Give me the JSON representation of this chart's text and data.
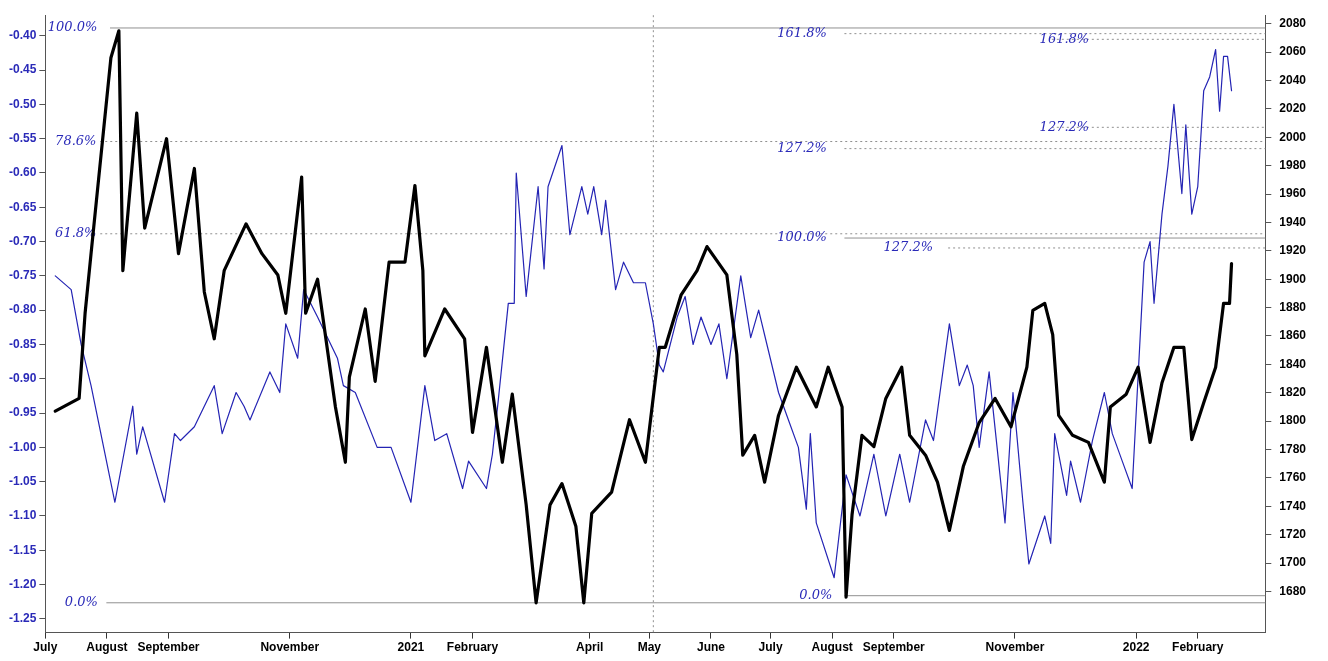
{
  "chart_data": {
    "type": "line",
    "xlim": [
      "2020-07-01",
      "2022-03-07"
    ],
    "xticks": [
      {
        "value": "2020-07-01",
        "label": "July"
      },
      {
        "value": "2020-08-01",
        "label": "August"
      },
      {
        "value": "2020-09-01",
        "label": "September"
      },
      {
        "value": "2020-11-01",
        "label": "November"
      },
      {
        "value": "2021-01-01",
        "label": "2021"
      },
      {
        "value": "2021-02-01",
        "label": "February"
      },
      {
        "value": "2021-04-01",
        "label": "April"
      },
      {
        "value": "2021-05-01",
        "label": "May"
      },
      {
        "value": "2021-06-01",
        "label": "June"
      },
      {
        "value": "2021-07-01",
        "label": "July"
      },
      {
        "value": "2021-08-01",
        "label": "August"
      },
      {
        "value": "2021-09-01",
        "label": "September"
      },
      {
        "value": "2021-11-01",
        "label": "November"
      },
      {
        "value": "2022-01-01",
        "label": "2022"
      },
      {
        "value": "2022-02-01",
        "label": "February"
      }
    ],
    "ylim": [
      -1.27,
      -0.37
    ],
    "yticks": [
      {
        "value": -0.4,
        "label": "-0.40"
      },
      {
        "value": -0.45,
        "label": "-0.45"
      },
      {
        "value": -0.5,
        "label": "-0.50"
      },
      {
        "value": -0.55,
        "label": "-0.55"
      },
      {
        "value": -0.6,
        "label": "-0.60"
      },
      {
        "value": -0.65,
        "label": "-0.65"
      },
      {
        "value": -0.7,
        "label": "-0.70"
      },
      {
        "value": -0.75,
        "label": "-0.75"
      },
      {
        "value": -0.8,
        "label": "-0.80"
      },
      {
        "value": -0.85,
        "label": "-0.85"
      },
      {
        "value": -0.9,
        "label": "-0.90"
      },
      {
        "value": -0.95,
        "label": "-0.95"
      },
      {
        "value": -1.0,
        "label": "-1.00"
      },
      {
        "value": -1.05,
        "label": "-1.05"
      },
      {
        "value": -1.1,
        "label": "-1.10"
      },
      {
        "value": -1.15,
        "label": "-1.15"
      },
      {
        "value": -1.2,
        "label": "-1.20"
      },
      {
        "value": -1.25,
        "label": "-1.25"
      }
    ],
    "y2lim": [
      1651,
      2086
    ],
    "y2ticks": [
      1680,
      1700,
      1720,
      1740,
      1760,
      1780,
      1800,
      1820,
      1840,
      1860,
      1880,
      1900,
      1920,
      1940,
      1960,
      1980,
      2000,
      2020,
      2040,
      2060,
      2080
    ],
    "grid": false,
    "legend": false,
    "marker": "none",
    "line_style": "solid",
    "series": [
      {
        "color": "#000000",
        "axis": "y2",
        "x": [
          "2020-07-06",
          "2020-07-18",
          "2020-07-21",
          "2020-07-24",
          "2020-07-29",
          "2020-08-03",
          "2020-08-07",
          "2020-08-09",
          "2020-08-16",
          "2020-08-20",
          "2020-08-31",
          "2020-09-06",
          "2020-09-14",
          "2020-09-19",
          "2020-09-24",
          "2020-09-29",
          "2020-10-10",
          "2020-10-18",
          "2020-10-26",
          "2020-10-30",
          "2020-11-07",
          "2020-11-09",
          "2020-11-15",
          "2020-11-24",
          "2020-11-29",
          "2020-12-01",
          "2020-12-09",
          "2020-12-14",
          "2020-12-21",
          "2020-12-29",
          "2021-01-03",
          "2021-01-07",
          "2021-01-08",
          "2021-01-18",
          "2021-01-28",
          "2021-02-01",
          "2021-02-08",
          "2021-02-16",
          "2021-02-21",
          "2021-02-28",
          "2021-03-05",
          "2021-03-12",
          "2021-03-18",
          "2021-03-25",
          "2021-03-29",
          "2021-04-02",
          "2021-04-12",
          "2021-04-21",
          "2021-04-29",
          "2021-05-06",
          "2021-05-09",
          "2021-05-17",
          "2021-05-25",
          "2021-05-30",
          "2021-06-09",
          "2021-06-14",
          "2021-06-17",
          "2021-06-23",
          "2021-06-28",
          "2021-07-05",
          "2021-07-14",
          "2021-07-24",
          "2021-07-30",
          "2021-08-06",
          "2021-08-08",
          "2021-08-11",
          "2021-08-16",
          "2021-08-22",
          "2021-08-28",
          "2021-09-05",
          "2021-09-09",
          "2021-09-17",
          "2021-09-23",
          "2021-09-29",
          "2021-10-06",
          "2021-10-14",
          "2021-10-22",
          "2021-10-30",
          "2021-11-07",
          "2021-11-10",
          "2021-11-16",
          "2021-11-20",
          "2021-11-23",
          "2021-11-30",
          "2021-12-08",
          "2021-12-16",
          "2021-12-19",
          "2021-12-27",
          "2022-01-02",
          "2022-01-08",
          "2022-01-14",
          "2022-01-20",
          "2022-01-25",
          "2022-01-29",
          "2022-02-04",
          "2022-02-10",
          "2022-02-14",
          "2022-02-17",
          "2022-02-18"
        ],
        "values": [
          1807,
          1816,
          1876,
          1918,
          1987,
          2056,
          2075,
          1906,
          2017,
          1936,
          1999,
          1918,
          1978,
          1891,
          1858,
          1906,
          1939,
          1918,
          1903,
          1876,
          1972,
          1876,
          1900,
          1810,
          1771,
          1831,
          1879,
          1828,
          1912,
          1912,
          1966,
          1906,
          1846,
          1879,
          1858,
          1792,
          1852,
          1771,
          1819,
          1741,
          1672,
          1741,
          1756,
          1726,
          1672,
          1735,
          1750,
          1801,
          1771,
          1852,
          1852,
          1889,
          1906,
          1923,
          1903,
          1847,
          1776,
          1790,
          1757,
          1804,
          1838,
          1810,
          1838,
          1810,
          1676,
          1734,
          1790,
          1782,
          1816,
          1838,
          1790,
          1776,
          1757,
          1723,
          1768,
          1799,
          1816,
          1796,
          1838,
          1878,
          1883,
          1861,
          1804,
          1790,
          1785,
          1757,
          1810,
          1819,
          1838,
          1785,
          1827,
          1852,
          1852,
          1787,
          1813,
          1838,
          1883,
          1883,
          1911
        ]
      },
      {
        "color": "#2424b4",
        "axis": "y",
        "x": [
          "2020-07-06",
          "2020-07-14",
          "2020-07-19",
          "2020-07-24",
          "2020-08-05",
          "2020-08-14",
          "2020-08-16",
          "2020-08-19",
          "2020-08-30",
          "2020-09-04",
          "2020-09-07",
          "2020-09-14",
          "2020-09-24",
          "2020-09-28",
          "2020-10-05",
          "2020-10-09",
          "2020-10-12",
          "2020-10-22",
          "2020-10-27",
          "2020-10-30",
          "2020-11-05",
          "2020-11-08",
          "2020-11-15",
          "2020-11-25",
          "2020-11-28",
          "2020-12-04",
          "2020-12-15",
          "2020-12-22",
          "2021-01-01",
          "2021-01-08",
          "2021-01-13",
          "2021-01-19",
          "2021-01-27",
          "2021-01-30",
          "2021-02-08",
          "2021-02-11",
          "2021-02-14",
          "2021-02-19",
          "2021-02-22",
          "2021-02-23",
          "2021-02-28",
          "2021-03-06",
          "2021-03-09",
          "2021-03-11",
          "2021-03-18",
          "2021-03-22",
          "2021-03-28",
          "2021-03-31",
          "2021-04-03",
          "2021-04-07",
          "2021-04-09",
          "2021-04-14",
          "2021-04-18",
          "2021-04-23",
          "2021-04-29",
          "2021-05-03",
          "2021-05-06",
          "2021-05-08",
          "2021-05-15",
          "2021-05-19",
          "2021-05-23",
          "2021-05-27",
          "2021-06-01",
          "2021-06-05",
          "2021-06-09",
          "2021-06-16",
          "2021-06-21",
          "2021-06-25",
          "2021-07-05",
          "2021-07-10",
          "2021-07-15",
          "2021-07-19",
          "2021-07-21",
          "2021-07-24",
          "2021-08-02",
          "2021-08-08",
          "2021-08-15",
          "2021-08-22",
          "2021-08-28",
          "2021-09-04",
          "2021-09-09",
          "2021-09-17",
          "2021-09-21",
          "2021-09-29",
          "2021-10-04",
          "2021-10-08",
          "2021-10-11",
          "2021-10-14",
          "2021-10-19",
          "2021-10-27",
          "2021-10-31",
          "2021-11-05",
          "2021-11-08",
          "2021-11-16",
          "2021-11-19",
          "2021-11-21",
          "2021-11-27",
          "2021-11-29",
          "2021-12-04",
          "2021-12-10",
          "2021-12-16",
          "2021-12-20",
          "2021-12-25",
          "2021-12-30",
          "2022-01-05",
          "2022-01-08",
          "2022-01-10",
          "2022-01-14",
          "2022-01-17",
          "2022-01-20",
          "2022-01-24",
          "2022-01-26",
          "2022-01-29",
          "2022-02-01",
          "2022-02-04",
          "2022-02-07",
          "2022-02-10",
          "2022-02-12",
          "2022-02-14",
          "2022-02-16",
          "2022-02-18"
        ],
        "values": [
          -0.75,
          -0.77,
          -0.85,
          -0.91,
          -1.08,
          -0.94,
          -1.01,
          -0.97,
          -1.08,
          -0.98,
          -0.99,
          -0.97,
          -0.91,
          -0.98,
          -0.92,
          -0.94,
          -0.96,
          -0.89,
          -0.92,
          -0.82,
          -0.87,
          -0.77,
          -0.81,
          -0.87,
          -0.91,
          -0.92,
          -1.0,
          -1.0,
          -1.08,
          -0.91,
          -0.99,
          -0.98,
          -1.06,
          -1.02,
          -1.06,
          -1.01,
          -0.93,
          -0.79,
          -0.79,
          -0.6,
          -0.78,
          -0.62,
          -0.74,
          -0.62,
          -0.56,
          -0.69,
          -0.62,
          -0.66,
          -0.62,
          -0.69,
          -0.64,
          -0.77,
          -0.73,
          -0.76,
          -0.76,
          -0.82,
          -0.88,
          -0.89,
          -0.81,
          -0.78,
          -0.85,
          -0.81,
          -0.85,
          -0.82,
          -0.9,
          -0.75,
          -0.84,
          -0.8,
          -0.92,
          -0.96,
          -1.0,
          -1.09,
          -0.98,
          -1.11,
          -1.19,
          -1.04,
          -1.1,
          -1.01,
          -1.1,
          -1.01,
          -1.08,
          -0.96,
          -0.99,
          -0.82,
          -0.91,
          -0.88,
          -0.91,
          -1.0,
          -0.89,
          -1.11,
          -0.92,
          -1.08,
          -1.17,
          -1.1,
          -1.14,
          -0.98,
          -1.07,
          -1.02,
          -1.08,
          -0.99,
          -0.92,
          -0.98,
          -1.02,
          -1.06,
          -0.73,
          -0.7,
          -0.79,
          -0.66,
          -0.59,
          -0.5,
          -0.63,
          -0.53,
          -0.66,
          -0.62,
          -0.48,
          -0.46,
          -0.42,
          -0.51,
          -0.43,
          -0.43,
          -0.48
        ]
      }
    ],
    "annotations": [
      "100.0%",
      "78.6%",
      "61.8%",
      "0.0%",
      "161.8%",
      "127.2%",
      "100.0%",
      "127.2%",
      "0.0%",
      "161.8%",
      "127.2%"
    ],
    "ref_lines": [
      {
        "axis": "y2",
        "value": 2077,
        "color": "#909090",
        "line_style": "solid"
      },
      {
        "axis": "y2",
        "value": 1997,
        "color": "#909090",
        "line_style": "dotted"
      },
      {
        "axis": "y2",
        "value": 1932,
        "color": "#909090",
        "line_style": "dotted"
      },
      {
        "axis": "y2",
        "value": 1672,
        "color": "#909090",
        "line_style": "solid"
      },
      {
        "axis": "y2",
        "value": 2073,
        "color": "#909090",
        "line_style": "dotted"
      },
      {
        "axis": "y2",
        "value": 1992,
        "color": "#909090",
        "line_style": "dotted"
      },
      {
        "axis": "y2",
        "value": 1929,
        "color": "#909090",
        "line_style": "solid"
      },
      {
        "axis": "y2",
        "value": 1922,
        "color": "#909090",
        "line_style": "dotted"
      },
      {
        "axis": "y2",
        "value": 1677,
        "color": "#909090",
        "line_style": "solid"
      },
      {
        "axis": "y2",
        "value": 2069,
        "color": "#909090",
        "line_style": "dotted"
      },
      {
        "axis": "y2",
        "value": 2007,
        "color": "#909090",
        "line_style": "dotted"
      },
      {
        "axis": "x",
        "value": "2021-05-03",
        "color": "#909090",
        "line_style": "dotted"
      }
    ]
  }
}
